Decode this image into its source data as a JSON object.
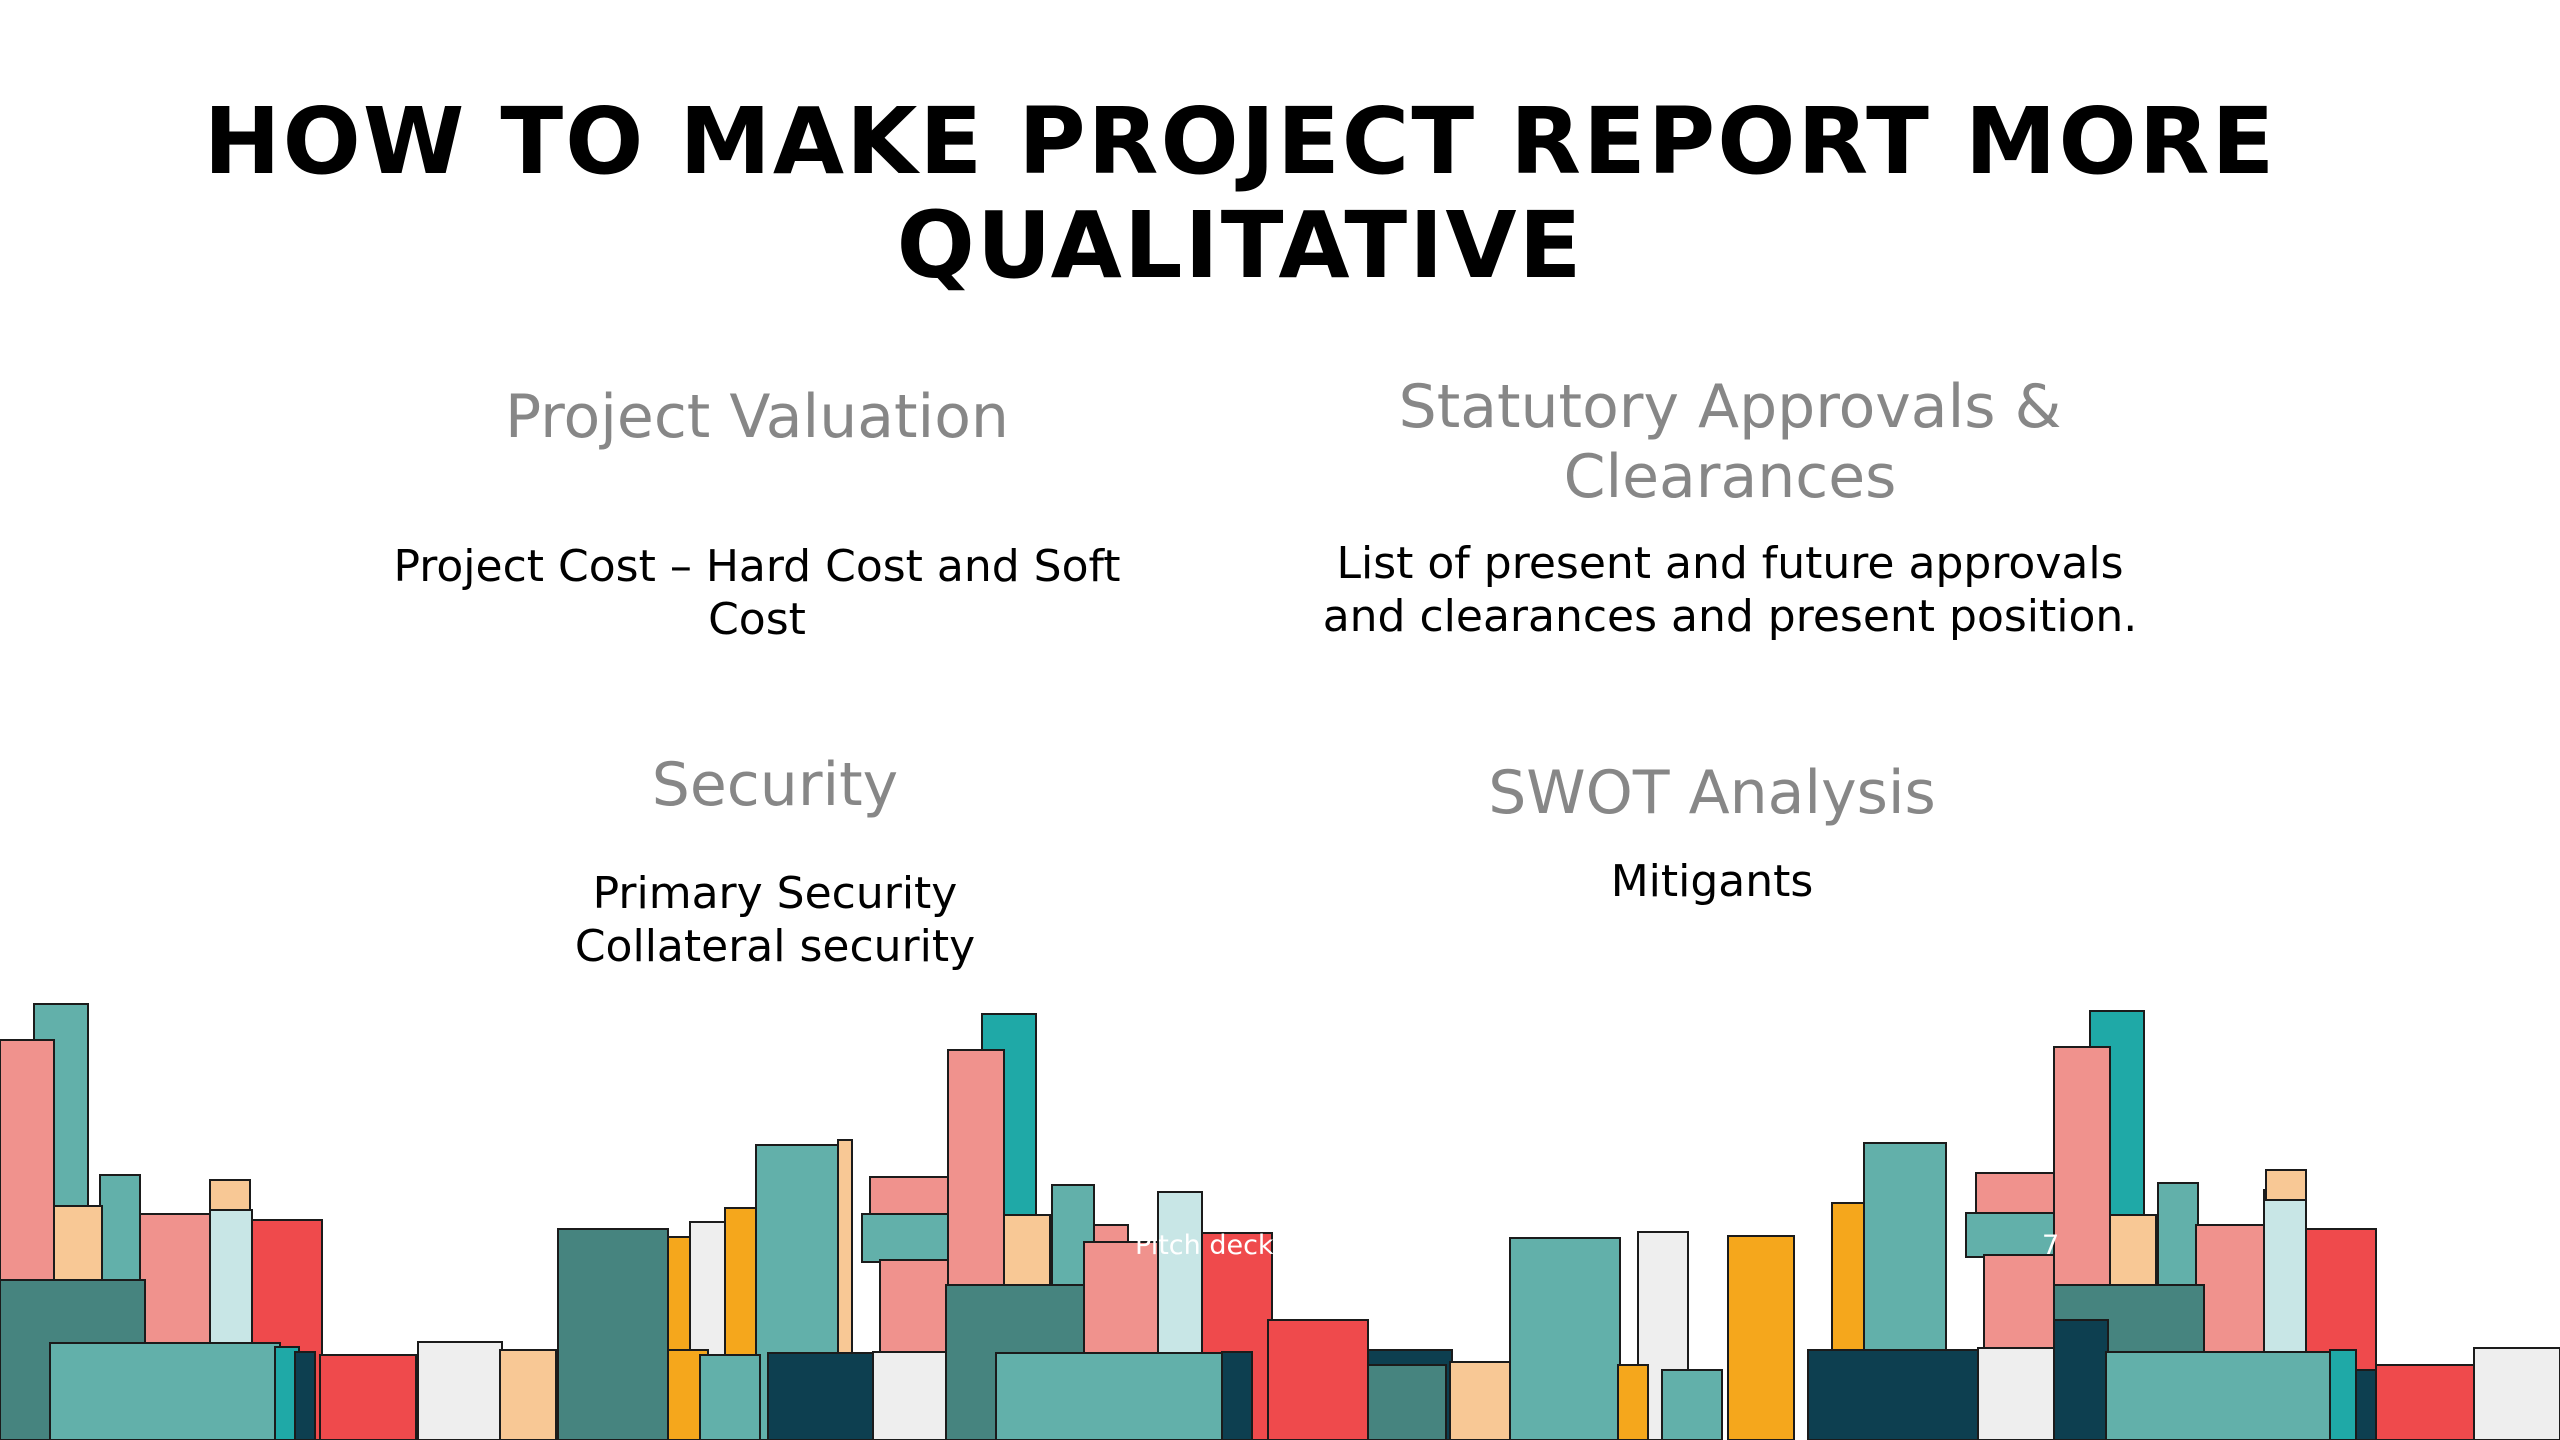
{
  "title": {
    "line1": "HOW TO MAKE PROJECT REPORT MORE",
    "line2": "QUALITATIVE"
  },
  "sections": {
    "project_valuation": {
      "heading": "Project Valuation",
      "body_line1": "Project Cost – Hard Cost and Soft",
      "body_line2": "Cost"
    },
    "statutory_approvals": {
      "heading_line1": "Statutory Approvals &",
      "heading_line2": "Clearances",
      "body_line1": "List of present and future approvals",
      "body_line2": "and clearances and present position."
    },
    "security": {
      "heading": "Security",
      "body_line1": "Primary Security",
      "body_line2": "Collateral security"
    },
    "swot": {
      "heading": "SWOT Analysis",
      "body": "Mitigants"
    }
  },
  "footer": {
    "left_text": "Pitch deck",
    "page_number": "7"
  },
  "palette": {
    "teal": "#62b0aa",
    "deep_teal": "#1fa9a7",
    "dark_teal": "#46847f",
    "navy": "#0d3f50",
    "pink": "#f0928d",
    "red": "#ef4a4c",
    "peach": "#f8c895",
    "amber": "#f5a71c",
    "pale_blue": "#c8e6e6",
    "light_gray": "#eeeeee"
  }
}
